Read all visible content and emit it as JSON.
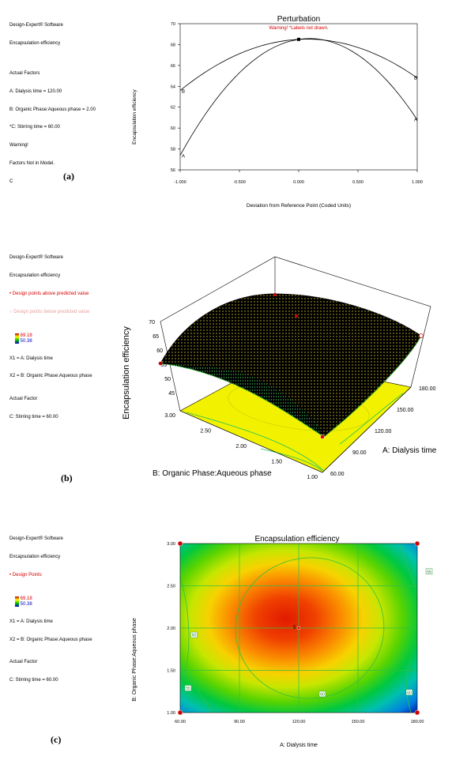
{
  "panels": {
    "a": {
      "label": "(a)"
    },
    "b": {
      "label": "(b)"
    },
    "c": {
      "label": "(c)"
    }
  },
  "info_a": {
    "lines": [
      "Design-Expert® Software",
      "Encapsulation efficiency",
      "",
      "Actual Factors",
      "A: Dialysis time = 120.00",
      "B: Organic Phase:Aqueous phase = 2.00",
      "*C: Stirring time = 60.00",
      "Warning!",
      "Factors Not in Model.",
      "C"
    ]
  },
  "info_b": {
    "line1": "Design-Expert® Software",
    "line2": "Encapsulation efficiency",
    "above": "• Design points above predicted value",
    "below": "○ Design points below predicted value",
    "max": "69.18",
    "min": "50.38",
    "x1": "X1 = A: Dialysis time",
    "x2": "X2 = B: Organic Phase:Aqueous phase",
    "actual": "Actual Factor",
    "stir": "C: Stirring time = 60.00"
  },
  "info_c": {
    "line1": "Design-Expert® Software",
    "line2": "Encapsulation efficiency",
    "points": "• Design Points",
    "max": "69.18",
    "min": "50.38",
    "x1": "X1 = A: Dialysis time",
    "x2": "X2 = B: Organic Phase:Aqueous phase",
    "actual": "Actual Factor",
    "stir": "C: Stirring time = 60.00"
  },
  "chart_data": [
    {
      "type": "line",
      "title": "Perturbation",
      "subtitle": "Warning! *Labels not drawn.",
      "xlabel": "Deviation from Reference Point (Coded Units)",
      "ylabel": "Encapsulation efficiency",
      "xlim": [
        -1.0,
        1.0
      ],
      "ylim": [
        56,
        70
      ],
      "xticks": [
        "-1.000",
        "-0.500",
        "0.000",
        "0.500",
        "1.000"
      ],
      "yticks": [
        "56",
        "58",
        "60",
        "62",
        "64",
        "66",
        "68",
        "70"
      ],
      "series": [
        {
          "name": "A",
          "x": [
            -1.0,
            -0.5,
            0.0,
            0.5,
            1.0
          ],
          "y": [
            57.4,
            65.1,
            68.5,
            67.2,
            60.8
          ]
        },
        {
          "name": "B",
          "x": [
            -1.0,
            -0.5,
            0.0,
            0.5,
            1.0
          ],
          "y": [
            63.6,
            67.0,
            68.5,
            67.6,
            64.8
          ]
        }
      ],
      "center_point": {
        "x": 0.0,
        "y": 68.5
      }
    },
    {
      "type": "surface",
      "zlabel": "Encapsulation efficiency",
      "xlabel": "A: Dialysis time",
      "ylabel": "B: Organic Phase:Aqueous phase",
      "x_ticks": [
        "60.00",
        "90.00",
        "120.00",
        "150.00",
        "180.00"
      ],
      "y_ticks": [
        "1.00",
        "1.50",
        "2.00",
        "2.50",
        "3.00"
      ],
      "z_ticks": [
        "45",
        "50",
        "55",
        "60",
        "65",
        "70"
      ],
      "zlim": [
        45,
        70
      ]
    },
    {
      "type": "heatmap",
      "title": "Encapsulation efficiency",
      "xlabel": "A: Dialysis time",
      "ylabel": "B: Organic Phase:Aqueous phase",
      "xlim": [
        60,
        180
      ],
      "ylim": [
        1.0,
        3.0
      ],
      "xticks": [
        "60.00",
        "90.00",
        "120.00",
        "150.00",
        "180.00"
      ],
      "yticks": [
        "1.00",
        "1.50",
        "2.00",
        "2.50",
        "3.00"
      ],
      "contour_labels": [
        {
          "text": "55",
          "x": 186,
          "y": 2.67
        },
        {
          "text": "60",
          "x": 67,
          "y": 1.92
        },
        {
          "text": "60",
          "x": 132,
          "y": 1.22
        },
        {
          "text": "60",
          "x": 176,
          "y": 1.24
        },
        {
          "text": "55",
          "x": 64,
          "y": 1.29
        }
      ],
      "center_label": "5",
      "design_points": [
        [
          60,
          1
        ],
        [
          60,
          3
        ],
        [
          180,
          1
        ],
        [
          180,
          3
        ],
        [
          120,
          2
        ]
      ]
    }
  ]
}
